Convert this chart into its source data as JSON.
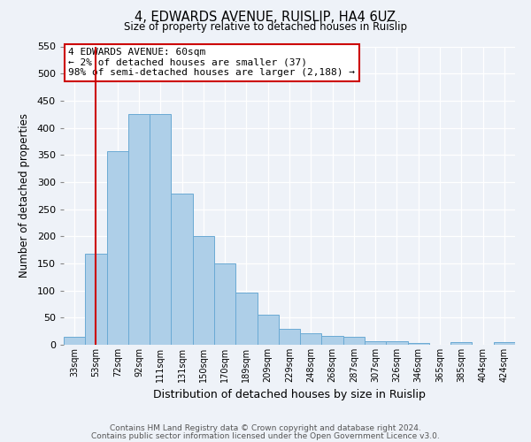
{
  "title": "4, EDWARDS AVENUE, RUISLIP, HA4 6UZ",
  "subtitle": "Size of property relative to detached houses in Ruislip",
  "xlabel": "Distribution of detached houses by size in Ruislip",
  "ylabel": "Number of detached properties",
  "categories": [
    "33sqm",
    "53sqm",
    "72sqm",
    "92sqm",
    "111sqm",
    "131sqm",
    "150sqm",
    "170sqm",
    "189sqm",
    "209sqm",
    "229sqm",
    "248sqm",
    "268sqm",
    "287sqm",
    "307sqm",
    "326sqm",
    "346sqm",
    "365sqm",
    "385sqm",
    "404sqm",
    "424sqm"
  ],
  "bar_values": [
    15,
    168,
    357,
    425,
    425,
    278,
    200,
    150,
    96,
    55,
    29,
    22,
    17,
    15,
    7,
    6,
    3,
    0,
    5,
    0,
    5
  ],
  "bar_color": "#aecfe8",
  "bar_edge_color": "#6aaad4",
  "vline_x": 1,
  "vline_color": "#cc0000",
  "ylim": [
    0,
    550
  ],
  "yticks": [
    0,
    50,
    100,
    150,
    200,
    250,
    300,
    350,
    400,
    450,
    500,
    550
  ],
  "annotation_line1": "4 EDWARDS AVENUE: 60sqm",
  "annotation_line2": "← 2% of detached houses are smaller (37)",
  "annotation_line3": "98% of semi-detached houses are larger (2,188) →",
  "annotation_box_color": "#cc0000",
  "background_color": "#eef2f8",
  "footer_line1": "Contains HM Land Registry data © Crown copyright and database right 2024.",
  "footer_line2": "Contains public sector information licensed under the Open Government Licence v3.0."
}
